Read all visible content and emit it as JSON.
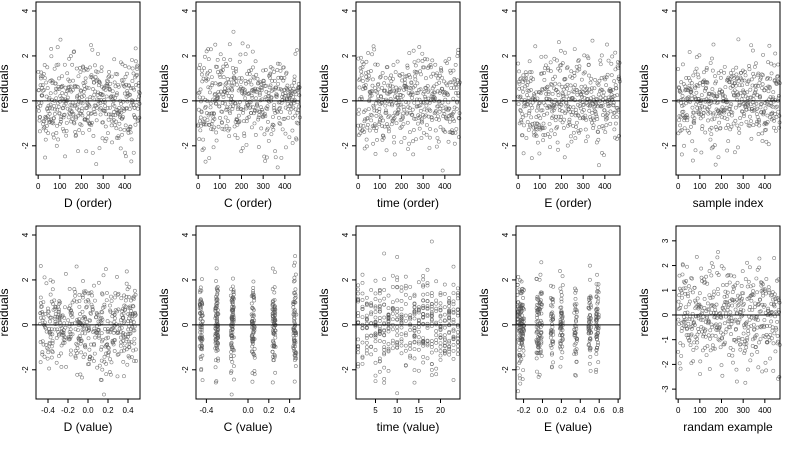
{
  "chart_data": [
    {
      "type": "scatter",
      "xlabel": "D (order)",
      "ylabel": "residuals",
      "xticks": [
        "0",
        "100",
        "200",
        "300",
        "400"
      ],
      "xtick_values": [
        0,
        100,
        200,
        300,
        400
      ],
      "yticks": [
        "-2",
        "0",
        "2",
        "4"
      ],
      "ytick_values": [
        -2,
        0,
        2,
        4
      ],
      "xlim": [
        -10,
        470
      ],
      "ylim": [
        -3.3,
        4.4
      ],
      "zero_line": 0,
      "n_points": 470,
      "distribution": "order",
      "seed": 11
    },
    {
      "type": "scatter",
      "xlabel": "C (order)",
      "ylabel": "residuals",
      "xticks": [
        "0",
        "100",
        "200",
        "300",
        "400"
      ],
      "xtick_values": [
        0,
        100,
        200,
        300,
        400
      ],
      "yticks": [
        "-2",
        "0",
        "2",
        "4"
      ],
      "ytick_values": [
        -2,
        0,
        2,
        4
      ],
      "xlim": [
        -10,
        470
      ],
      "ylim": [
        -3.3,
        4.4
      ],
      "zero_line": 0,
      "n_points": 470,
      "distribution": "order",
      "seed": 23
    },
    {
      "type": "scatter",
      "xlabel": "time (order)",
      "ylabel": "residuals",
      "xticks": [
        "0",
        "100",
        "200",
        "300",
        "400"
      ],
      "xtick_values": [
        0,
        100,
        200,
        300,
        400
      ],
      "yticks": [
        "-2",
        "0",
        "2",
        "4"
      ],
      "ytick_values": [
        -2,
        0,
        2,
        4
      ],
      "xlim": [
        -10,
        470
      ],
      "ylim": [
        -3.3,
        4.4
      ],
      "zero_line": 0,
      "n_points": 470,
      "distribution": "order",
      "seed": 37
    },
    {
      "type": "scatter",
      "xlabel": "E (order)",
      "ylabel": "residuals",
      "xticks": [
        "0",
        "100",
        "200",
        "300",
        "400"
      ],
      "xtick_values": [
        0,
        100,
        200,
        300,
        400
      ],
      "yticks": [
        "-2",
        "0",
        "2",
        "4"
      ],
      "ytick_values": [
        -2,
        0,
        2,
        4
      ],
      "xlim": [
        -10,
        470
      ],
      "ylim": [
        -3.3,
        4.4
      ],
      "zero_line": 0,
      "n_points": 470,
      "distribution": "order",
      "seed": 41
    },
    {
      "type": "scatter",
      "xlabel": "sample index",
      "ylabel": "residuals",
      "xticks": [
        "0",
        "100",
        "200",
        "300",
        "400"
      ],
      "xtick_values": [
        0,
        100,
        200,
        300,
        400
      ],
      "yticks": [
        "-2",
        "0",
        "2",
        "4"
      ],
      "ytick_values": [
        -2,
        0,
        2,
        4
      ],
      "xlim": [
        -10,
        470
      ],
      "ylim": [
        -3.3,
        4.4
      ],
      "zero_line": 0,
      "n_points": 470,
      "distribution": "order",
      "seed": 53
    },
    {
      "type": "scatter",
      "xlabel": "D (value)",
      "ylabel": "residuals",
      "xticks": [
        "-0.4",
        "-0.2",
        "0.0",
        "0.2",
        "0.4"
      ],
      "xtick_values": [
        -0.4,
        -0.2,
        0.0,
        0.2,
        0.4
      ],
      "yticks": [
        "-2",
        "0",
        "2",
        "4"
      ],
      "ytick_values": [
        -2,
        0,
        2,
        4
      ],
      "xlim": [
        -0.52,
        0.52
      ],
      "ylim": [
        -3.3,
        4.4
      ],
      "zero_line": 0,
      "n_points": 470,
      "distribution": "continuous",
      "seed": 61
    },
    {
      "type": "scatter",
      "xlabel": "C (value)",
      "ylabel": "residuals",
      "xticks": [
        "-0.4",
        "0.0",
        "0.2",
        "0.4"
      ],
      "xtick_values": [
        -0.4,
        0.0,
        0.2,
        0.4
      ],
      "yticks": [
        "-2",
        "0",
        "2",
        "4"
      ],
      "ytick_values": [
        -2,
        0,
        2,
        4
      ],
      "xlim": [
        -0.5,
        0.5
      ],
      "ylim": [
        -3.3,
        4.4
      ],
      "zero_line": 0,
      "n_points": 470,
      "distribution": "clustered",
      "clusters": [
        -0.45,
        -0.3,
        -0.15,
        0.05,
        0.25,
        0.45
      ],
      "seed": 73
    },
    {
      "type": "scatter",
      "xlabel": "time (value)",
      "ylabel": "residuals",
      "xticks": [
        "5",
        "10",
        "15",
        "20"
      ],
      "xtick_values": [
        5,
        10,
        15,
        20
      ],
      "yticks": [
        "-2",
        "0",
        "2",
        "4"
      ],
      "ytick_values": [
        -2,
        0,
        2,
        4
      ],
      "xlim": [
        0.5,
        24.5
      ],
      "ylim": [
        -3.3,
        4.4
      ],
      "zero_line": 0,
      "n_points": 470,
      "distribution": "discrete",
      "levels": [
        1,
        2,
        3,
        4,
        5,
        6,
        7,
        8,
        9,
        10,
        11,
        12,
        13,
        14,
        15,
        16,
        17,
        18,
        19,
        20,
        21,
        22,
        23,
        24
      ],
      "seed": 89
    },
    {
      "type": "scatter",
      "xlabel": "E (value)",
      "ylabel": "residuals",
      "xticks": [
        "-0.2",
        "0.0",
        "0.2",
        "0.4",
        "0.6",
        "0.8"
      ],
      "xtick_values": [
        -0.2,
        0.0,
        0.2,
        0.4,
        0.6,
        0.8
      ],
      "yticks": [
        "-2",
        "0",
        "2",
        "4"
      ],
      "ytick_values": [
        -2,
        0,
        2,
        4
      ],
      "xlim": [
        -0.28,
        0.82
      ],
      "ylim": [
        -3.3,
        4.4
      ],
      "zero_line": 0,
      "n_points": 470,
      "distribution": "clustered",
      "clusters": [
        -0.25,
        -0.23,
        -0.21,
        -0.05,
        -0.02,
        0.1,
        0.2,
        0.35,
        0.5,
        0.58
      ],
      "seed": 97
    },
    {
      "type": "scatter",
      "xlabel": "randam example",
      "ylabel": "residuals",
      "xticks": [
        "0",
        "100",
        "200",
        "300",
        "400"
      ],
      "xtick_values": [
        0,
        100,
        200,
        300,
        400
      ],
      "yticks": [
        "-3",
        "-2",
        "-1",
        "0",
        "1",
        "2",
        "3"
      ],
      "ytick_values": [
        -3,
        -2,
        -1,
        0,
        1,
        2,
        3
      ],
      "xlim": [
        -10,
        470
      ],
      "ylim": [
        -3.4,
        3.6
      ],
      "zero_line": 0,
      "n_points": 470,
      "distribution": "order",
      "seed": 101
    }
  ]
}
